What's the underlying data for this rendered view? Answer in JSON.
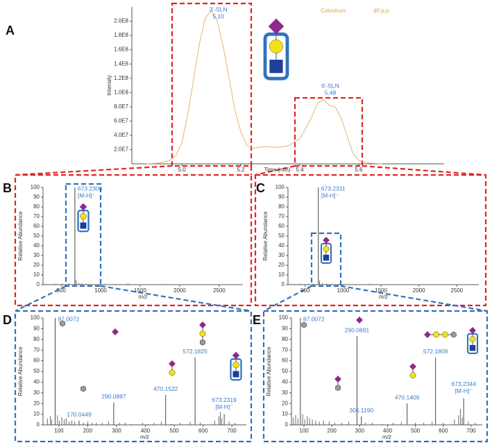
{
  "chart_data": [
    {
      "type": "line",
      "panel_label": "A",
      "y_label": "Intensity",
      "x_label": "Time (min)",
      "sample": "Colostrum",
      "timepoint": "d0 p.p.",
      "color": "#e3b56a",
      "x": [
        4.88,
        4.92,
        4.96,
        4.98,
        5.0,
        5.02,
        5.04,
        5.06,
        5.08,
        5.1,
        5.12,
        5.14,
        5.16,
        5.18,
        5.2,
        5.22,
        5.24,
        5.28,
        5.32,
        5.36,
        5.4,
        5.42,
        5.44,
        5.46,
        5.48,
        5.5,
        5.52,
        5.54,
        5.56,
        5.58,
        5.6,
        5.64,
        5.68
      ],
      "values": [
        0,
        1000000,
        5000000,
        12000000,
        30000000,
        70000000,
        120000000,
        170000000,
        205000000,
        215000000,
        200000000,
        165000000,
        120000000,
        75000000,
        45000000,
        26000000,
        22000000,
        24000000,
        23000000,
        25000000,
        35000000,
        50000000,
        65000000,
        85000000,
        90000000,
        82000000,
        80000000,
        65000000,
        40000000,
        15000000,
        5000000,
        1000000,
        0
      ],
      "xlim": [
        4.83,
        5.89
      ],
      "xticks": [
        {
          "value": 5,
          "label": "5.0"
        },
        5.2,
        5.4,
        5.6
      ],
      "ylim": [
        0,
        220000000
      ],
      "yticks": [
        {
          "value": 20000000,
          "label": "2.0E7"
        },
        {
          "value": 40000000,
          "label": "4.0E7"
        },
        {
          "value": 60000000,
          "label": "6.0E7"
        },
        {
          "value": 80000000,
          "label": "8.0E7"
        },
        {
          "value": 100000000,
          "label": "1.0E8"
        },
        {
          "value": 120000000,
          "label": "1.2E8"
        },
        {
          "value": 140000000,
          "label": "1.4E8"
        },
        {
          "value": 160000000,
          "label": "1.6E8"
        },
        {
          "value": 180000000,
          "label": "1.8E8"
        },
        {
          "value": 200000000,
          "label": "2.0E8"
        }
      ],
      "peak_names": [
        "3'-SLN",
        "6'-SLN"
      ],
      "peak_x": [
        5.1,
        5.48
      ],
      "peak_x_labels": [
        "5.10",
        "5.48"
      ]
    },
    {
      "type": "spectrum",
      "panel_label": "B",
      "y_label": "Relative Abundance",
      "x_label": "m/z",
      "color": "#444444",
      "xlim": [
        270,
        2800
      ],
      "xticks": [
        500,
        1000,
        1500,
        2000,
        2500
      ],
      "ylim": [
        0,
        100
      ],
      "yticks": [
        0,
        10,
        20,
        30,
        40,
        50,
        60,
        70,
        80,
        90,
        100
      ],
      "peaks": {
        "x": [
          673.2306
        ],
        "values": [
          100
        ],
        "x_labels": [
          "673.2306"
        ],
        "ion_labels": [
          "[M-H]⁻"
        ]
      },
      "noise": {
        "x": [
          300,
          420,
          520,
          600,
          690,
          720,
          760,
          820,
          900,
          1347,
          1800
        ],
        "values": [
          0.5,
          0.8,
          1,
          1.5,
          5,
          2,
          1.5,
          1,
          0.5,
          1.2,
          0.4
        ]
      }
    },
    {
      "type": "spectrum",
      "panel_label": "C",
      "y_label": "Relative Abundance",
      "x_label": "m/z",
      "color": "#444444",
      "xlim": [
        273,
        2790
      ],
      "xticks": [
        500,
        1000,
        1500,
        2000,
        2500
      ],
      "ylim": [
        0,
        100
      ],
      "yticks": [
        0,
        10,
        20,
        30,
        40,
        50,
        60,
        70,
        80,
        90,
        100
      ],
      "peaks": {
        "x": [
          673.2311
        ],
        "values": [
          100
        ],
        "x_labels": [
          "673.2311"
        ],
        "ion_labels": [
          "[M-H]⁻"
        ]
      },
      "noise": {
        "x": [
          310,
          430,
          540,
          610,
          690,
          730,
          780,
          850,
          950,
          1347
        ],
        "values": [
          0.6,
          0.7,
          1,
          1.2,
          4,
          1.5,
          1.2,
          0.8,
          0.5,
          1
        ]
      }
    },
    {
      "type": "spectrum",
      "panel_label": "D",
      "y_label": "Relative Abundance",
      "x_label": "m/z",
      "color": "#444444",
      "xlim": [
        45,
        750
      ],
      "xticks": [
        100,
        200,
        300,
        400,
        500,
        600,
        700
      ],
      "ylim": [
        0,
        100
      ],
      "yticks": [
        0,
        10,
        20,
        30,
        40,
        50,
        60,
        70,
        80,
        90,
        100
      ],
      "peaks": {
        "x": [
          87.0072,
          170.0449,
          290.0887,
          470.1522,
          572.1825,
          673.2319
        ],
        "values": [
          100,
          4,
          21,
          28,
          63,
          10
        ],
        "x_labels": [
          "87.0072",
          "170.0449",
          "290.0887",
          "470.1522",
          "572.1825",
          "673.2319"
        ],
        "ion_labels": [
          null,
          null,
          null,
          null,
          null,
          "[M-H]⁻"
        ]
      },
      "noise": {
        "x": [
          60,
          70,
          75,
          95,
          102,
          110,
          118,
          125,
          135,
          145,
          155,
          185,
          200,
          215,
          230,
          250,
          272,
          310,
          330,
          350,
          390,
          410,
          430,
          455,
          490,
          520,
          555,
          590,
          640,
          655,
          660,
          665,
          690,
          710
        ],
        "values": [
          6,
          8,
          5,
          9,
          4,
          7,
          5,
          6,
          3,
          4,
          3,
          2,
          3,
          2,
          2,
          2,
          3,
          2,
          2,
          1,
          2,
          1,
          2,
          3,
          1,
          2,
          3,
          2,
          4,
          8,
          12,
          6,
          3,
          2
        ]
      }
    },
    {
      "type": "spectrum",
      "panel_label": "E",
      "y_label": "Relative Abundance",
      "x_label": "m/z",
      "color": "#444444",
      "xlim": [
        55,
        740
      ],
      "xticks": [
        100,
        200,
        300,
        400,
        500,
        600,
        700
      ],
      "ylim": [
        0,
        100
      ],
      "yticks": [
        0,
        10,
        20,
        30,
        40,
        50,
        60,
        70,
        80,
        90,
        100
      ],
      "peaks": {
        "x": [
          87.0072,
          290.0891,
          306.119,
          470.1409,
          572.1809,
          673.2344
        ],
        "values": [
          100,
          83,
          8,
          20,
          63,
          25
        ],
        "x_labels": [
          "87.0072",
          "290.0891",
          "306.1190",
          "470.1409",
          "572.1809",
          "673.2344"
        ],
        "ion_labels": [
          null,
          null,
          null,
          null,
          null,
          "[M-H]⁻"
        ]
      },
      "noise": {
        "x": [
          62,
          70,
          78,
          95,
          103,
          112,
          120,
          130,
          142,
          155,
          170,
          190,
          210,
          235,
          260,
          320,
          345,
          380,
          420,
          450,
          500,
          530,
          560,
          600,
          640,
          655,
          662,
          668,
          690,
          715
        ],
        "values": [
          7,
          9,
          6,
          10,
          5,
          8,
          6,
          5,
          4,
          3,
          4,
          3,
          2,
          2,
          3,
          2,
          2,
          1,
          2,
          3,
          2,
          2,
          3,
          2,
          5,
          9,
          15,
          7,
          3,
          2
        ]
      }
    }
  ]
}
